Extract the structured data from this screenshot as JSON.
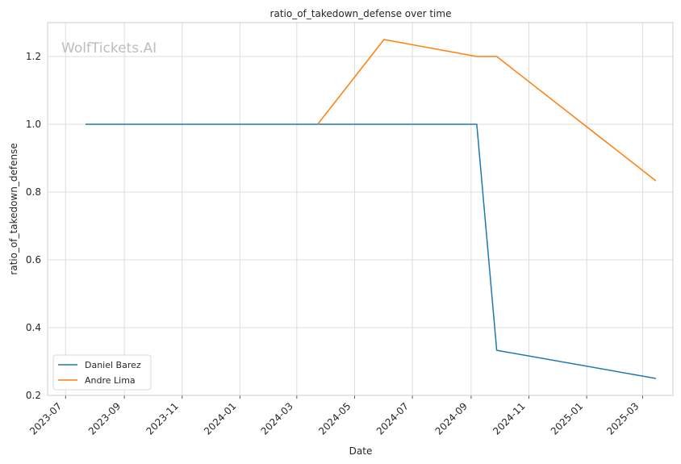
{
  "chart_data": {
    "type": "line",
    "title": "ratio_of_takedown_defense over time",
    "xlabel": "Date",
    "ylabel": "ratio_of_takedown_defense",
    "watermark": "WolfTickets.AI",
    "x_ticks": [
      "2023-07",
      "2023-09",
      "2023-11",
      "2024-01",
      "2024-03",
      "2024-05",
      "2024-07",
      "2024-09",
      "2024-11",
      "2025-01",
      "2025-03"
    ],
    "y_ticks": [
      "0.2",
      "0.4",
      "0.6",
      "0.8",
      "1.0",
      "1.2"
    ],
    "xlim": [
      "2023-06-12",
      "2025-04-02"
    ],
    "ylim": [
      0.2,
      1.3
    ],
    "grid": true,
    "legend_position": "lower-left",
    "series": [
      {
        "name": "Daniel Barez",
        "color": "#1f77b4",
        "points": [
          {
            "x": "2023-07-22",
            "y": 1.0
          },
          {
            "x": "2024-09-07",
            "y": 1.0
          },
          {
            "x": "2024-09-28",
            "y": 0.333
          },
          {
            "x": "2025-03-15",
            "y": 0.25
          }
        ]
      },
      {
        "name": "Andre Lima",
        "color": "#ff7f0e",
        "points": [
          {
            "x": "2024-03-23",
            "y": 1.0
          },
          {
            "x": "2024-06-01",
            "y": 1.25
          },
          {
            "x": "2024-09-07",
            "y": 1.2
          },
          {
            "x": "2024-09-28",
            "y": 1.2
          },
          {
            "x": "2025-03-15",
            "y": 0.833
          }
        ]
      }
    ]
  }
}
